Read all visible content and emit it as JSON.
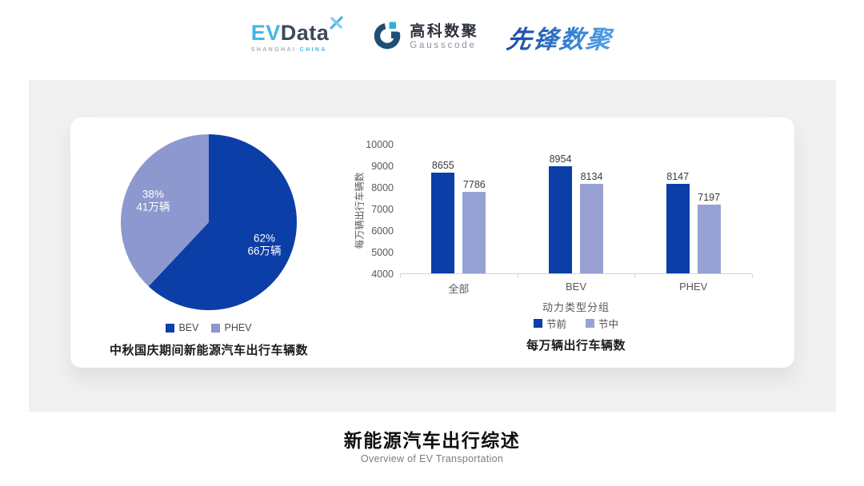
{
  "header": {
    "evdata": {
      "ev": "EV",
      "data": "Data",
      "sub1": "SHANGHAI",
      "sub2": "CHINA"
    },
    "gausscode": {
      "cn": "高科数聚",
      "en": "Gausscode"
    },
    "pioneer": {
      "text": "先锋数聚"
    }
  },
  "colors": {
    "accent_dark": "#0c3ea7",
    "accent_light": "#929dd2",
    "panel_gray": "#f0f0f1"
  },
  "chart_data": [
    {
      "type": "pie",
      "title": "中秋国庆期间新能源汽车出行车辆数",
      "legend_position": "bottom",
      "slices": [
        {
          "name": "BEV",
          "value": 62,
          "pct_label": "62%",
          "unit_label": "66万辆",
          "color": "#0c3ea7",
          "label_color": "#ffffff"
        },
        {
          "name": "PHEV",
          "value": 38,
          "pct_label": "38%",
          "unit_label": "41万辆",
          "color": "#8d98ce",
          "label_color": "#ffffff"
        }
      ]
    },
    {
      "type": "bar",
      "title": "每万辆出行车辆数",
      "xlabel": "动力类型分组",
      "ylabel": "每万辆出行车辆数",
      "categories": [
        "全部",
        "BEV",
        "PHEV"
      ],
      "series": [
        {
          "name": "节前",
          "color": "#0c3ea7",
          "values": [
            8655,
            8954,
            8147
          ]
        },
        {
          "name": "节中",
          "color": "#97a1d4",
          "values": [
            7786,
            8134,
            7197
          ]
        }
      ],
      "ylim": [
        4000,
        10000
      ],
      "ytick_step": 1000,
      "grid": false,
      "legend_position": "bottom"
    }
  ],
  "footer": {
    "title": "新能源汽车出行综述",
    "subtitle": "Overview of EV Transportation"
  }
}
